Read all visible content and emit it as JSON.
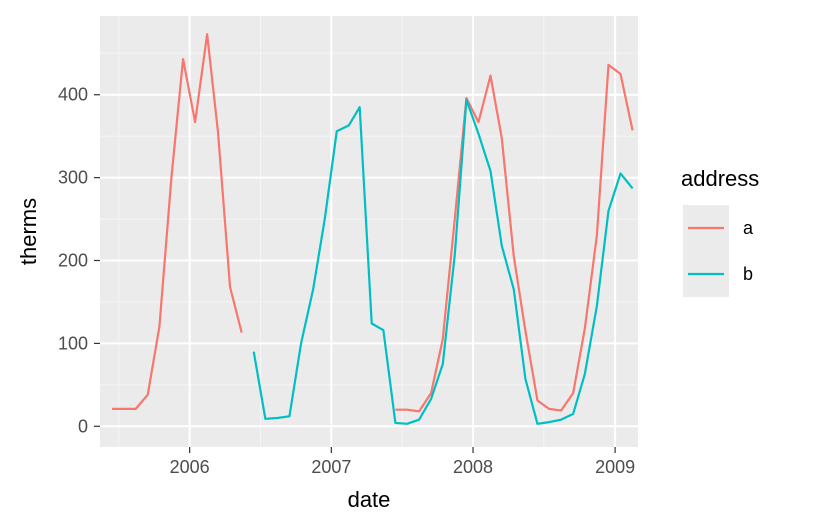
{
  "chart_data": {
    "type": "line",
    "title": "",
    "xlabel": "date",
    "ylabel": "therms",
    "xlim": [
      "2005-05-15",
      "2009-03-01"
    ],
    "ylim": [
      -25,
      495
    ],
    "x_ticks": [
      {
        "date": "2006-01-01",
        "label": "2006"
      },
      {
        "date": "2007-01-01",
        "label": "2007"
      },
      {
        "date": "2008-01-01",
        "label": "2008"
      },
      {
        "date": "2009-01-01",
        "label": "2009"
      }
    ],
    "y_ticks": [
      0,
      100,
      200,
      300,
      400
    ],
    "y_tick_labels": [
      "0",
      "100",
      "200",
      "300",
      "400"
    ],
    "grid": true,
    "legend": {
      "title": "address",
      "placement": "right"
    },
    "series": [
      {
        "name": "a",
        "color": "#F8766D",
        "segments": [
          [
            {
              "x": "2005-06-15",
              "y": 21
            },
            {
              "x": "2005-07-15",
              "y": 21
            },
            {
              "x": "2005-08-15",
              "y": 21
            },
            {
              "x": "2005-09-15",
              "y": 38
            },
            {
              "x": "2005-10-15",
              "y": 120
            },
            {
              "x": "2005-11-15",
              "y": 300
            },
            {
              "x": "2005-12-15",
              "y": 443
            },
            {
              "x": "2006-01-15",
              "y": 367
            },
            {
              "x": "2006-02-15",
              "y": 473
            },
            {
              "x": "2006-03-15",
              "y": 355
            },
            {
              "x": "2006-04-15",
              "y": 168
            },
            {
              "x": "2006-05-15",
              "y": 113
            }
          ],
          [
            {
              "x": "2007-06-15",
              "y": 20
            },
            {
              "x": "2007-07-15",
              "y": 20
            },
            {
              "x": "2007-08-15",
              "y": 18
            },
            {
              "x": "2007-09-15",
              "y": 40
            },
            {
              "x": "2007-10-15",
              "y": 105
            },
            {
              "x": "2007-11-15",
              "y": 250
            },
            {
              "x": "2007-12-15",
              "y": 396
            },
            {
              "x": "2008-01-15",
              "y": 367
            },
            {
              "x": "2008-02-15",
              "y": 423
            },
            {
              "x": "2008-03-15",
              "y": 348
            },
            {
              "x": "2008-04-15",
              "y": 205
            },
            {
              "x": "2008-05-15",
              "y": 115
            },
            {
              "x": "2008-06-15",
              "y": 31
            },
            {
              "x": "2008-07-15",
              "y": 21
            },
            {
              "x": "2008-08-15",
              "y": 19
            },
            {
              "x": "2008-09-15",
              "y": 40
            },
            {
              "x": "2008-10-15",
              "y": 118
            },
            {
              "x": "2008-11-15",
              "y": 230
            },
            {
              "x": "2008-12-15",
              "y": 436
            },
            {
              "x": "2009-01-15",
              "y": 425
            },
            {
              "x": "2009-02-15",
              "y": 357
            }
          ]
        ]
      },
      {
        "name": "b",
        "color": "#00BFC4",
        "segments": [
          [
            {
              "x": "2006-06-15",
              "y": 90
            },
            {
              "x": "2006-07-15",
              "y": 9
            },
            {
              "x": "2006-08-15",
              "y": 10
            },
            {
              "x": "2006-09-15",
              "y": 12
            },
            {
              "x": "2006-10-15",
              "y": 100
            },
            {
              "x": "2006-11-15",
              "y": 165
            },
            {
              "x": "2006-12-15",
              "y": 250
            },
            {
              "x": "2007-01-15",
              "y": 356
            },
            {
              "x": "2007-02-15",
              "y": 363
            },
            {
              "x": "2007-03-15",
              "y": 385
            },
            {
              "x": "2007-04-15",
              "y": 124
            },
            {
              "x": "2007-05-15",
              "y": 116
            },
            {
              "x": "2007-06-15",
              "y": 4
            },
            {
              "x": "2007-07-15",
              "y": 3
            },
            {
              "x": "2007-08-15",
              "y": 8
            },
            {
              "x": "2007-09-15",
              "y": 33
            },
            {
              "x": "2007-10-15",
              "y": 75
            },
            {
              "x": "2007-11-15",
              "y": 207
            },
            {
              "x": "2007-12-15",
              "y": 394
            },
            {
              "x": "2008-01-15",
              "y": 353
            },
            {
              "x": "2008-02-15",
              "y": 308
            },
            {
              "x": "2008-03-15",
              "y": 218
            },
            {
              "x": "2008-04-15",
              "y": 165
            },
            {
              "x": "2008-05-15",
              "y": 57
            },
            {
              "x": "2008-06-15",
              "y": 3
            },
            {
              "x": "2008-07-15",
              "y": 5
            },
            {
              "x": "2008-08-15",
              "y": 8
            },
            {
              "x": "2008-09-15",
              "y": 15
            },
            {
              "x": "2008-10-15",
              "y": 63
            },
            {
              "x": "2008-11-15",
              "y": 145
            },
            {
              "x": "2008-12-15",
              "y": 260
            },
            {
              "x": "2009-01-15",
              "y": 305
            },
            {
              "x": "2009-02-15",
              "y": 287
            }
          ]
        ]
      }
    ]
  },
  "colors": {
    "panel_background": "#EBEBEB",
    "grid_major": "#FFFFFF",
    "grid_minor": "#F5F5F5",
    "legend_key_background": "#EBEBEB"
  }
}
